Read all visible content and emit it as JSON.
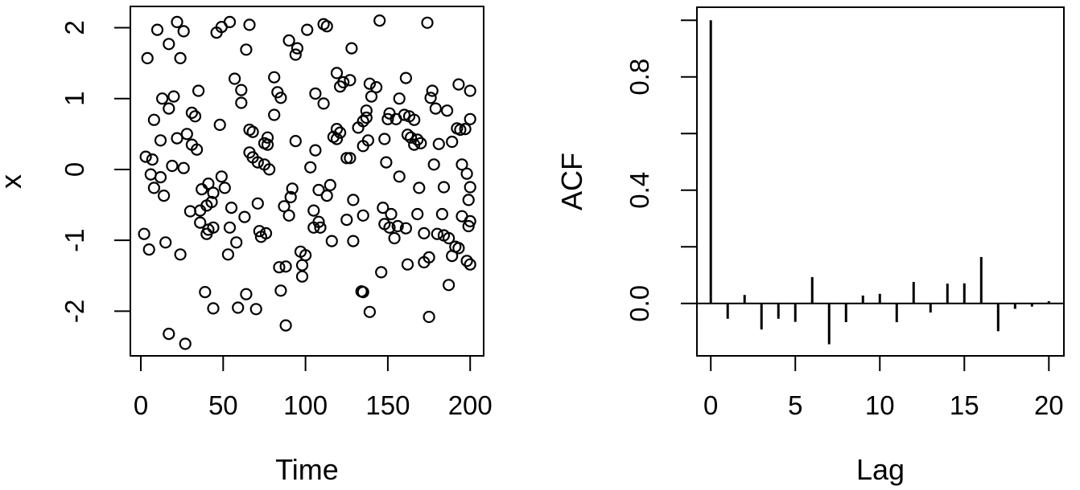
{
  "figure": {
    "background": "#ffffff",
    "foreground": "#000000",
    "description": "R base-graphics figure with two panels: time-series scatter plot and autocorrelation function plot"
  },
  "chart_data": [
    {
      "type": "scatter",
      "title": "",
      "xlabel": "Time",
      "ylabel": "x",
      "marker": "open-circle",
      "grid": false,
      "xlim": [
        -6.35,
        208.2
      ],
      "ylim": [
        -2.63,
        2.3
      ],
      "xticks": [
        0,
        50,
        100,
        150,
        200
      ],
      "xtick_labels": [
        "0",
        "50",
        "100",
        "150",
        "200"
      ],
      "yticks": [
        -2,
        -1,
        0,
        1,
        2
      ],
      "ytick_labels": [
        "-2",
        "-1",
        "0",
        "1",
        "2"
      ],
      "points": [
        [
          10,
          1.97
        ],
        [
          22,
          2.08
        ],
        [
          26,
          1.95
        ],
        [
          17,
          1.77
        ],
        [
          4,
          1.57
        ],
        [
          24,
          1.57
        ],
        [
          46,
          1.93
        ],
        [
          49,
          2.01
        ],
        [
          54,
          2.08
        ],
        [
          66,
          2.04
        ],
        [
          64,
          1.69
        ],
        [
          57,
          1.28
        ],
        [
          61,
          1.12
        ],
        [
          61,
          0.94
        ],
        [
          35,
          1.11
        ],
        [
          13,
          1.0
        ],
        [
          20,
          1.03
        ],
        [
          17,
          0.86
        ],
        [
          8,
          0.7
        ],
        [
          31,
          0.8
        ],
        [
          33,
          0.75
        ],
        [
          48,
          0.63
        ],
        [
          12,
          0.41
        ],
        [
          22,
          0.44
        ],
        [
          28,
          0.5
        ],
        [
          31,
          0.35
        ],
        [
          34,
          0.28
        ],
        [
          3,
          0.18
        ],
        [
          7,
          0.14
        ],
        [
          19,
          0.05
        ],
        [
          26,
          0.02
        ],
        [
          6,
          -0.07
        ],
        [
          12,
          -0.11
        ],
        [
          66,
          0.56
        ],
        [
          66,
          0.24
        ],
        [
          101,
          1.97
        ],
        [
          111,
          2.05
        ],
        [
          113,
          2.02
        ],
        [
          90,
          1.82
        ],
        [
          95,
          1.71
        ],
        [
          94,
          1.62
        ],
        [
          128,
          1.71
        ],
        [
          81,
          1.3
        ],
        [
          119,
          1.36
        ],
        [
          123,
          1.23
        ],
        [
          121,
          1.17
        ],
        [
          127,
          1.26
        ],
        [
          83,
          1.09
        ],
        [
          85,
          1.01
        ],
        [
          106,
          1.07
        ],
        [
          111,
          0.93
        ],
        [
          81,
          0.77
        ],
        [
          139,
          1.21
        ],
        [
          140,
          1.03
        ],
        [
          137,
          0.83
        ],
        [
          135,
          0.68
        ],
        [
          137,
          0.73
        ],
        [
          132,
          0.59
        ],
        [
          119,
          0.57
        ],
        [
          121,
          0.52
        ],
        [
          117,
          0.46
        ],
        [
          119,
          0.43
        ],
        [
          68,
          0.53
        ],
        [
          77,
          0.45
        ],
        [
          75,
          0.37
        ],
        [
          77,
          0.35
        ],
        [
          94,
          0.4
        ],
        [
          106,
          0.27
        ],
        [
          125,
          0.16
        ],
        [
          127,
          0.16
        ],
        [
          135,
          0.33
        ],
        [
          68,
          0.17
        ],
        [
          71,
          0.1
        ],
        [
          75,
          0.07
        ],
        [
          78,
          0.0
        ],
        [
          103,
          0.03
        ],
        [
          145,
          2.1
        ],
        [
          174,
          2.07
        ],
        [
          161,
          1.29
        ],
        [
          143,
          1.16
        ],
        [
          193,
          1.2
        ],
        [
          200,
          1.11
        ],
        [
          157,
          1.0
        ],
        [
          177,
          1.11
        ],
        [
          176,
          1.01
        ],
        [
          179,
          0.86
        ],
        [
          186,
          0.83
        ],
        [
          151,
          0.79
        ],
        [
          155,
          0.71
        ],
        [
          150,
          0.71
        ],
        [
          160,
          0.77
        ],
        [
          163,
          0.75
        ],
        [
          166,
          0.7
        ],
        [
          200,
          0.71
        ],
        [
          192,
          0.58
        ],
        [
          194,
          0.56
        ],
        [
          197,
          0.57
        ],
        [
          162,
          0.49
        ],
        [
          164,
          0.45
        ],
        [
          168,
          0.42
        ],
        [
          166,
          0.35
        ],
        [
          170,
          0.37
        ],
        [
          148,
          0.43
        ],
        [
          138,
          0.41
        ],
        [
          181,
          0.36
        ],
        [
          189,
          0.39
        ],
        [
          149,
          0.1
        ],
        [
          178,
          0.07
        ],
        [
          195,
          0.07
        ],
        [
          198,
          -0.06
        ],
        [
          157,
          -0.1
        ],
        [
          8,
          -0.26
        ],
        [
          14,
          -0.37
        ],
        [
          37,
          -0.28
        ],
        [
          41,
          -0.2
        ],
        [
          49,
          -0.1
        ],
        [
          51,
          -0.26
        ],
        [
          44,
          -0.33
        ],
        [
          40,
          -0.51
        ],
        [
          43,
          -0.46
        ],
        [
          36,
          -0.58
        ],
        [
          30,
          -0.59
        ],
        [
          55,
          -0.54
        ],
        [
          63,
          -0.67
        ],
        [
          36,
          -0.75
        ],
        [
          41,
          -0.85
        ],
        [
          44,
          -0.82
        ],
        [
          54,
          -0.82
        ],
        [
          40,
          -0.91
        ],
        [
          2,
          -0.91
        ],
        [
          5,
          -1.13
        ],
        [
          15,
          -1.03
        ],
        [
          24,
          -1.2
        ],
        [
          58,
          -1.03
        ],
        [
          53,
          -1.2
        ],
        [
          39,
          -1.73
        ],
        [
          44,
          -1.96
        ],
        [
          59,
          -1.95
        ],
        [
          64,
          -1.76
        ],
        [
          17,
          -2.32
        ],
        [
          27,
          -2.46
        ],
        [
          92,
          -0.27
        ],
        [
          91,
          -0.39
        ],
        [
          108,
          -0.29
        ],
        [
          115,
          -0.22
        ],
        [
          113,
          -0.37
        ],
        [
          129,
          -0.43
        ],
        [
          71,
          -0.48
        ],
        [
          87,
          -0.52
        ],
        [
          90,
          -0.65
        ],
        [
          105,
          -0.58
        ],
        [
          108,
          -0.74
        ],
        [
          105,
          -0.82
        ],
        [
          109,
          -0.82
        ],
        [
          72,
          -0.87
        ],
        [
          76,
          -0.9
        ],
        [
          73,
          -0.95
        ],
        [
          125,
          -0.71
        ],
        [
          116,
          -1.01
        ],
        [
          129,
          -1.01
        ],
        [
          97,
          -1.16
        ],
        [
          100,
          -1.21
        ],
        [
          84,
          -1.38
        ],
        [
          88,
          -1.37
        ],
        [
          98,
          -1.35
        ],
        [
          98,
          -1.51
        ],
        [
          85,
          -1.71
        ],
        [
          134,
          -1.72
        ],
        [
          135,
          -1.73
        ],
        [
          70,
          -1.97
        ],
        [
          139,
          -2.01
        ],
        [
          88,
          -2.2
        ],
        [
          169,
          -0.26
        ],
        [
          184,
          -0.25
        ],
        [
          200,
          -0.25
        ],
        [
          199,
          -0.43
        ],
        [
          147,
          -0.54
        ],
        [
          152,
          -0.63
        ],
        [
          135,
          -0.65
        ],
        [
          148,
          -0.77
        ],
        [
          151,
          -0.82
        ],
        [
          156,
          -0.8
        ],
        [
          161,
          -0.83
        ],
        [
          154,
          -0.97
        ],
        [
          168,
          -0.63
        ],
        [
          183,
          -0.63
        ],
        [
          195,
          -0.66
        ],
        [
          200,
          -0.73
        ],
        [
          199,
          -0.8
        ],
        [
          172,
          -0.9
        ],
        [
          180,
          -0.91
        ],
        [
          184,
          -0.93
        ],
        [
          187,
          -0.97
        ],
        [
          191,
          -1.09
        ],
        [
          193,
          -1.11
        ],
        [
          189,
          -1.22
        ],
        [
          198,
          -1.29
        ],
        [
          200,
          -1.34
        ],
        [
          162,
          -1.34
        ],
        [
          172,
          -1.31
        ],
        [
          175,
          -1.24
        ],
        [
          146,
          -1.45
        ],
        [
          187,
          -1.63
        ],
        [
          175,
          -2.08
        ]
      ]
    },
    {
      "type": "bar",
      "subtype": "acf-lollipop",
      "title": "",
      "xlabel": "Lag",
      "ylabel": "ACF",
      "grid": false,
      "baseline": 0,
      "xlim": [
        -0.82,
        20.89
      ],
      "ylim": [
        -0.185,
        1.046
      ],
      "xticks": [
        0,
        5,
        10,
        15,
        20
      ],
      "xtick_labels": [
        "0",
        "5",
        "10",
        "15",
        "20"
      ],
      "yticks": [
        0,
        0.2,
        0.4,
        0.6,
        0.8,
        1.0
      ],
      "ytick_labels": [
        "0.0",
        "",
        "0.4",
        "",
        "0.8",
        ""
      ],
      "lags": [
        0,
        1,
        2,
        3,
        4,
        5,
        6,
        7,
        8,
        9,
        10,
        11,
        12,
        13,
        14,
        15,
        16,
        17,
        18,
        19,
        20
      ],
      "values": [
        1.0,
        -0.054,
        0.03,
        -0.092,
        -0.054,
        -0.065,
        0.093,
        -0.144,
        -0.066,
        0.028,
        0.034,
        -0.066,
        0.076,
        -0.032,
        0.07,
        0.071,
        0.164,
        -0.098,
        -0.019,
        -0.011,
        0.008
      ]
    }
  ]
}
